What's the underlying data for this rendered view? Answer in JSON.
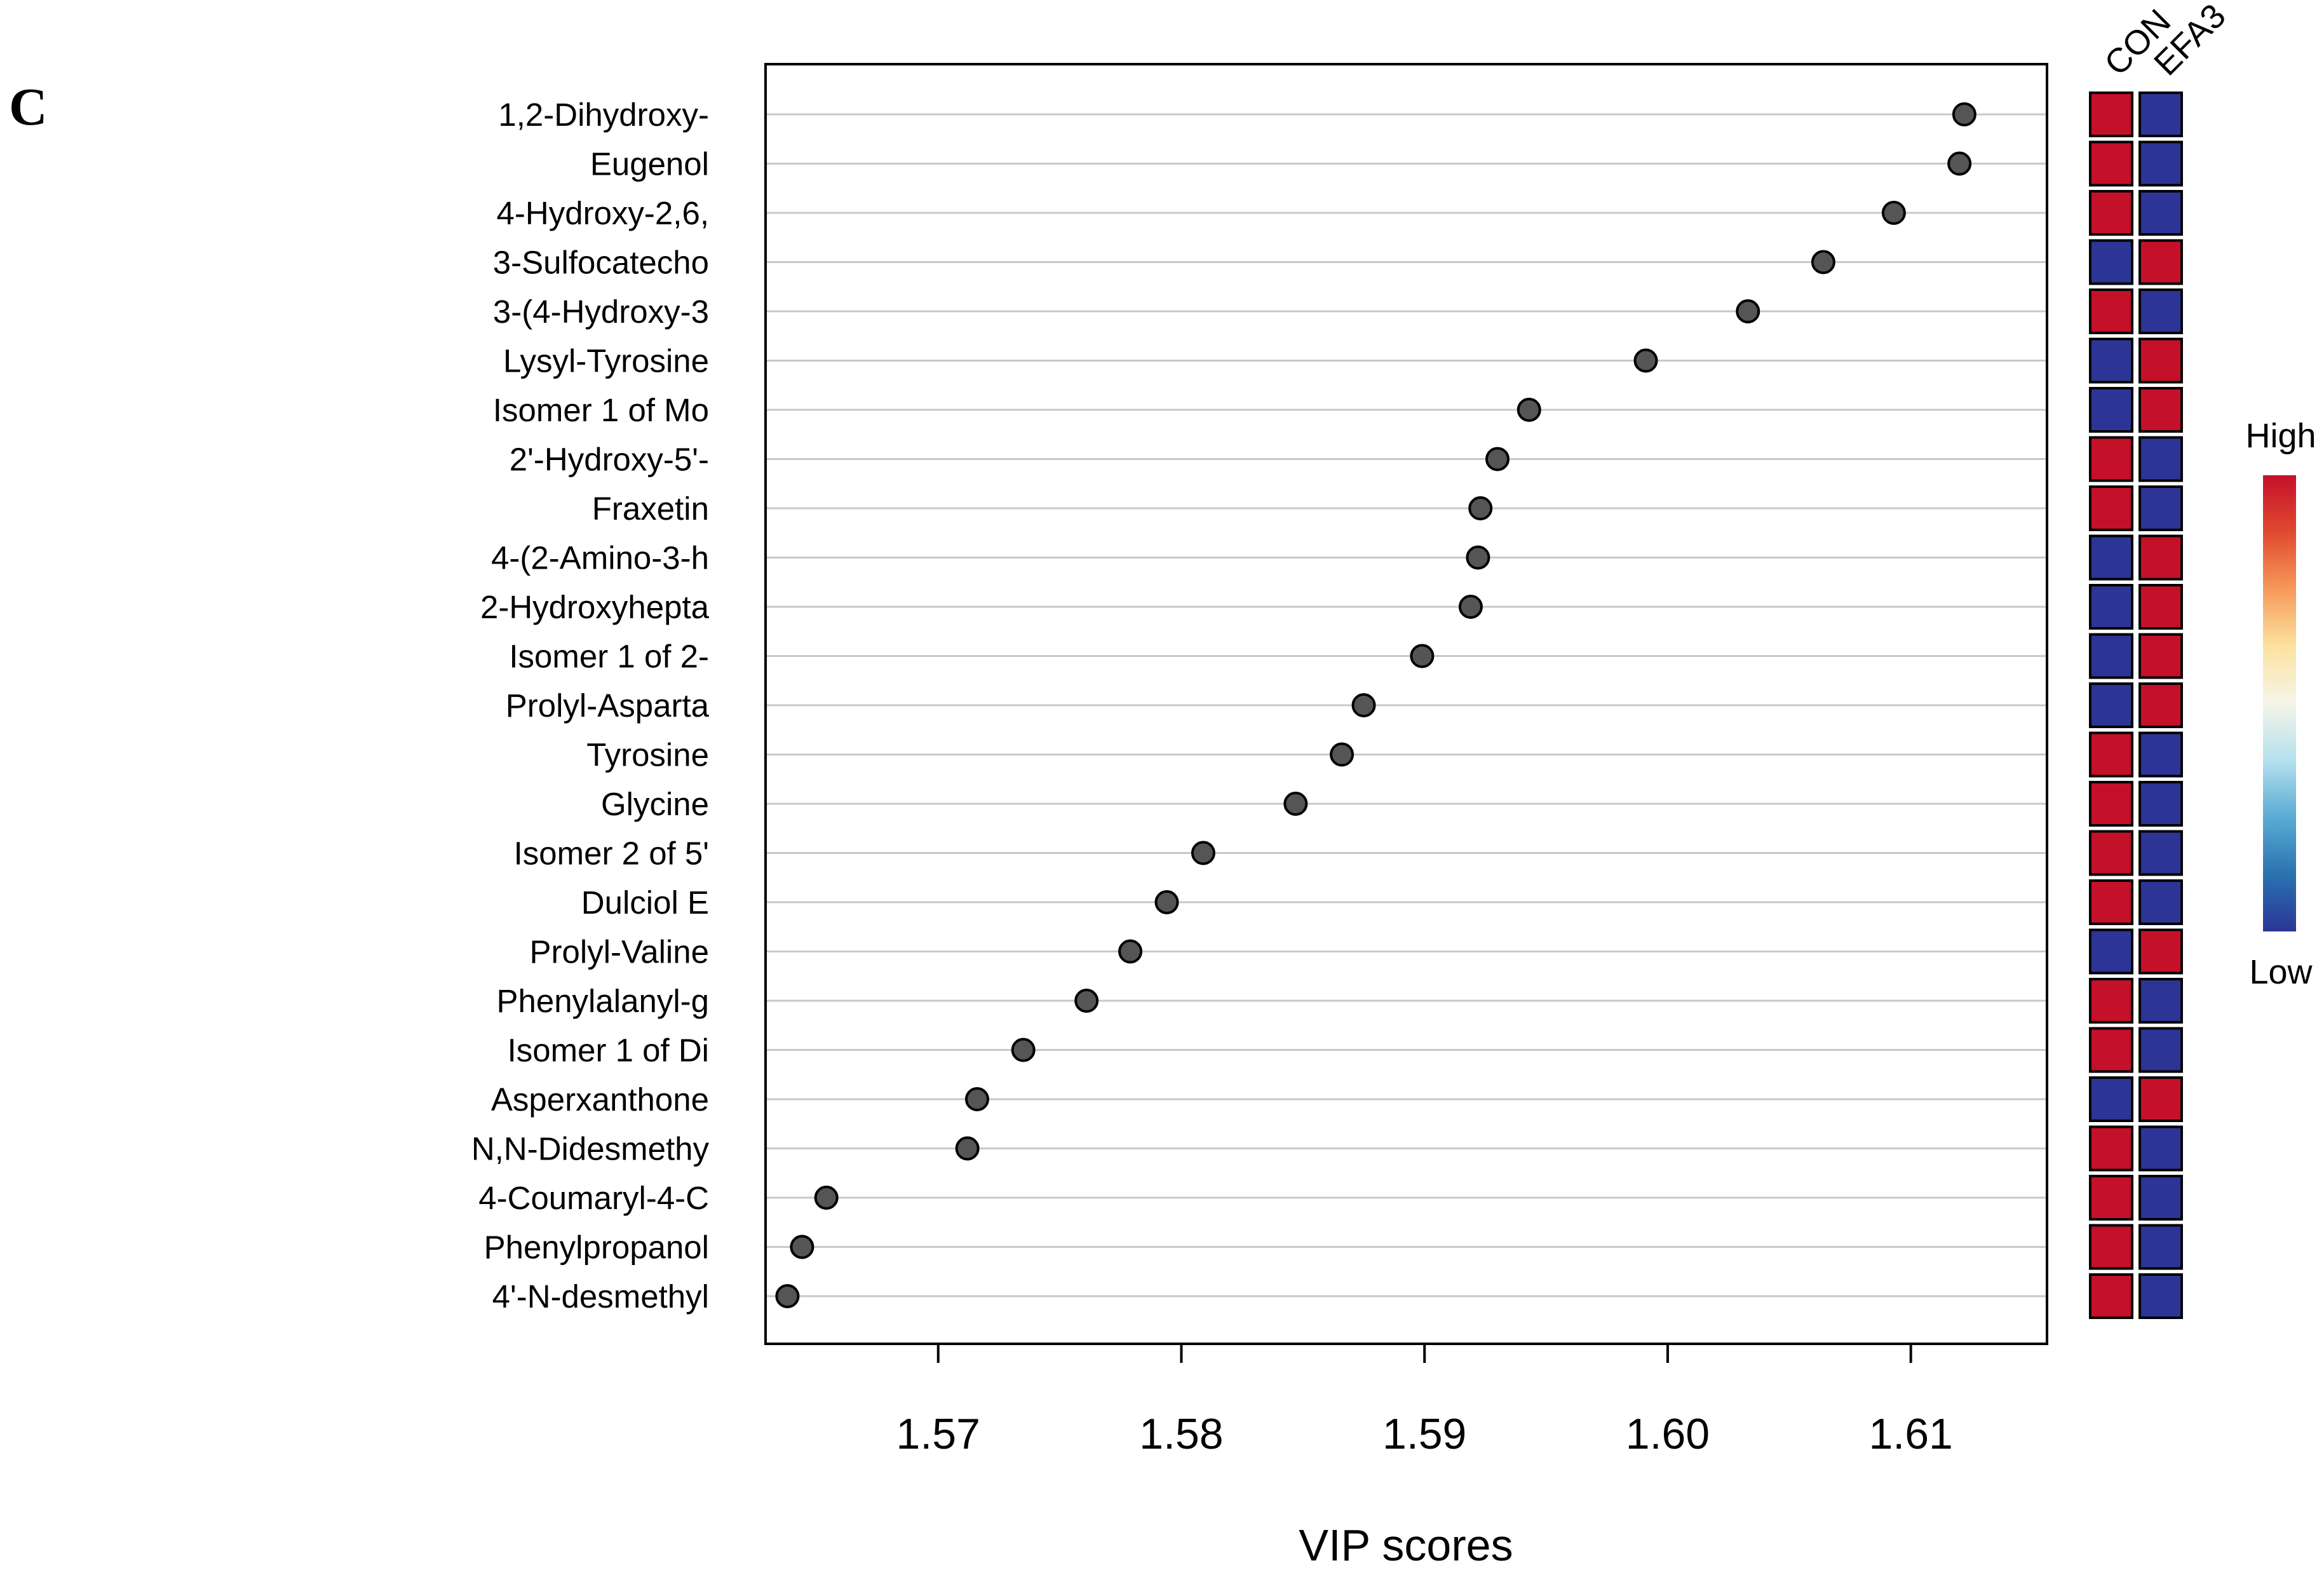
{
  "panel_label": "C",
  "chart_data": {
    "type": "scatter",
    "xlabel": "VIP scores",
    "ylabel": "",
    "xlim": [
      1.5629,
      1.6156
    ],
    "xticks": [
      1.57,
      1.58,
      1.59,
      1.6,
      1.61
    ],
    "xtick_labels": [
      "1.57",
      "1.58",
      "1.59",
      "1.60",
      "1.61"
    ],
    "grid": "horizontal",
    "marker_color": "#555555",
    "features": [
      {
        "label": "1,2-Dihydroxy-",
        "vip": 1.6122,
        "CON": "high",
        "EFA3": "low"
      },
      {
        "label": "Eugenol",
        "vip": 1.612,
        "CON": "high",
        "EFA3": "low"
      },
      {
        "label": "4-Hydroxy-2,6,",
        "vip": 1.6093,
        "CON": "high",
        "EFA3": "low"
      },
      {
        "label": "3-Sulfocatecho",
        "vip": 1.6064,
        "CON": "low",
        "EFA3": "high"
      },
      {
        "label": "3-(4-Hydroxy-3",
        "vip": 1.6033,
        "CON": "high",
        "EFA3": "low"
      },
      {
        "label": "Lysyl-Tyrosine",
        "vip": 1.5991,
        "CON": "low",
        "EFA3": "high"
      },
      {
        "label": "Isomer 1 of Mo",
        "vip": 1.5943,
        "CON": "low",
        "EFA3": "high"
      },
      {
        "label": "2'-Hydroxy-5'-",
        "vip": 1.593,
        "CON": "high",
        "EFA3": "low"
      },
      {
        "label": "Fraxetin",
        "vip": 1.5923,
        "CON": "high",
        "EFA3": "low"
      },
      {
        "label": "4-(2-Amino-3-h",
        "vip": 1.5922,
        "CON": "low",
        "EFA3": "high"
      },
      {
        "label": "2-Hydroxyhepta",
        "vip": 1.5919,
        "CON": "low",
        "EFA3": "high"
      },
      {
        "label": "Isomer 1 of 2-",
        "vip": 1.5899,
        "CON": "low",
        "EFA3": "high"
      },
      {
        "label": "Prolyl-Asparta",
        "vip": 1.5875,
        "CON": "low",
        "EFA3": "high"
      },
      {
        "label": "Tyrosine",
        "vip": 1.5866,
        "CON": "high",
        "EFA3": "low"
      },
      {
        "label": "Glycine",
        "vip": 1.5847,
        "CON": "high",
        "EFA3": "low"
      },
      {
        "label": "Isomer 2 of 5'",
        "vip": 1.5809,
        "CON": "high",
        "EFA3": "low"
      },
      {
        "label": "Dulciol E",
        "vip": 1.5794,
        "CON": "high",
        "EFA3": "low"
      },
      {
        "label": "Prolyl-Valine",
        "vip": 1.5779,
        "CON": "low",
        "EFA3": "high"
      },
      {
        "label": "Phenylalanyl-g",
        "vip": 1.5761,
        "CON": "high",
        "EFA3": "low"
      },
      {
        "label": "Isomer 1 of Di",
        "vip": 1.5735,
        "CON": "high",
        "EFA3": "low"
      },
      {
        "label": "Asperxanthone",
        "vip": 1.5716,
        "CON": "low",
        "EFA3": "high"
      },
      {
        "label": "N,N-Didesmethy",
        "vip": 1.5712,
        "CON": "high",
        "EFA3": "low"
      },
      {
        "label": "4-Coumaryl-4-C",
        "vip": 1.5654,
        "CON": "high",
        "EFA3": "low"
      },
      {
        "label": "Phenylpropanol",
        "vip": 1.5644,
        "CON": "high",
        "EFA3": "low"
      },
      {
        "label": "4'-N-desmethyl",
        "vip": 1.5638,
        "CON": "high",
        "EFA3": "low"
      }
    ],
    "heatmap": {
      "columns": [
        "CON",
        "EFA3"
      ],
      "colors": {
        "high": "#c5102a",
        "low": "#2c3596"
      }
    },
    "legend": {
      "high_label": "High",
      "low_label": "Low",
      "gradient": [
        "#c5102a",
        "#e04a30",
        "#f59a5a",
        "#fde2a0",
        "#f5f5e8",
        "#b5e0ee",
        "#5aabd4",
        "#2a72b0",
        "#2c3596"
      ]
    }
  }
}
